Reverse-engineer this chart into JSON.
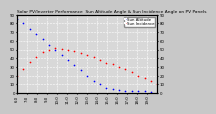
{
  "title": "Solar PV/Inverter Performance  Sun Altitude Angle & Sun Incidence Angle on PV Panels",
  "blue_series_label": "Sun Altitude",
  "red_series_label": "Sun Incidence",
  "background_color": "#c8c8c8",
  "plot_bg_color": "#d8d8d8",
  "grid_color": "#ffffff",
  "blue_color": "#0000ff",
  "red_color": "#ff0000",
  "title_fontsize": 3.2,
  "tick_fontsize": 2.8,
  "legend_fontsize": 2.8,
  "blue_x": [
    0,
    1,
    2,
    3,
    4,
    5,
    6,
    7,
    8,
    9,
    10,
    11,
    12,
    13,
    14,
    15,
    16,
    17,
    18,
    19,
    20,
    21,
    22
  ],
  "blue_y": [
    85,
    80,
    74,
    68,
    62,
    55,
    50,
    44,
    38,
    32,
    26,
    20,
    14,
    10,
    6,
    5,
    4,
    3,
    3,
    2,
    2,
    1,
    0
  ],
  "red_x": [
    0,
    1,
    2,
    3,
    4,
    5,
    6,
    7,
    8,
    9,
    10,
    11,
    12,
    13,
    14,
    15,
    16,
    17,
    18,
    19,
    20,
    21,
    22
  ],
  "red_y": [
    20,
    28,
    36,
    42,
    47,
    50,
    52,
    51,
    50,
    48,
    46,
    44,
    42,
    38,
    35,
    33,
    30,
    28,
    24,
    20,
    17,
    14,
    10
  ],
  "xlim": [
    0,
    22
  ],
  "ylim": [
    0,
    90
  ],
  "yticks": [
    0,
    10,
    20,
    30,
    40,
    50,
    60,
    70,
    80,
    90
  ],
  "xtick_labels": [
    "6:0",
    "7:0",
    "8:0",
    "9:0",
    "10:0",
    "11:0",
    "12:0",
    "13:0",
    "14:0",
    "15:0",
    "16:0",
    "17:0",
    "18:0",
    "19:0"
  ],
  "xtick_positions": [
    0,
    1.57,
    3.14,
    4.71,
    6.28,
    7.86,
    9.43,
    11.0,
    12.57,
    14.14,
    15.71,
    17.28,
    18.86,
    20.43
  ]
}
